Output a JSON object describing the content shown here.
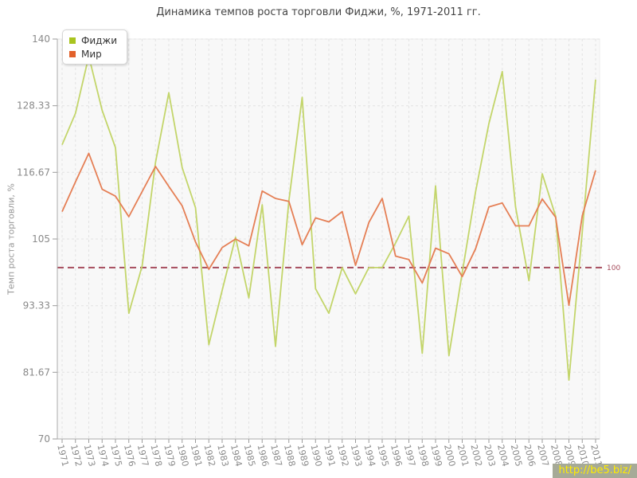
{
  "title": "Динамика темпов роста торговли Фиджи, %, 1971-2011 гг.",
  "y_axis": {
    "title": "Темп роста торговли, %",
    "tick_labels": [
      "140",
      "128.33",
      "116.67",
      "105",
      "93.33",
      "81.67",
      "70"
    ],
    "tick_values": [
      140,
      128.33,
      116.67,
      105,
      93.33,
      81.67,
      70
    ]
  },
  "legend": {
    "items": [
      {
        "key": "fiji",
        "label": "Фиджи",
        "color": "#a9c41f"
      },
      {
        "key": "world",
        "label": "Мир",
        "color": "#e2612b"
      }
    ]
  },
  "watermark": {
    "text": "http://be5.biz/"
  },
  "chart_data": {
    "type": "line",
    "title": "Динамика темпов роста торговли Фиджи, %, 1971-2011 гг.",
    "xlabel": "",
    "ylabel": "Темп роста торговли, %",
    "ylim": [
      70,
      140
    ],
    "grid": true,
    "legend_position": "top-left",
    "x": [
      1971,
      1972,
      1973,
      1974,
      1975,
      1976,
      1977,
      1978,
      1979,
      1980,
      1981,
      1982,
      1983,
      1984,
      1985,
      1986,
      1987,
      1988,
      1989,
      1990,
      1991,
      1992,
      1993,
      1994,
      1995,
      1996,
      1997,
      1998,
      1999,
      2000,
      2001,
      2002,
      2003,
      2004,
      2005,
      2006,
      2007,
      2008,
      2009,
      2010,
      2011
    ],
    "series": [
      {
        "key": "fiji",
        "name": "Фиджи",
        "color": "#c3d56a",
        "values": [
          121.5,
          127,
          137,
          127.5,
          121,
          92,
          100.3,
          118.4,
          130.6,
          117.5,
          110.5,
          86.5,
          96,
          105.3,
          94.7,
          111,
          86.2,
          111.7,
          129.8,
          96.3,
          92,
          100,
          95.4,
          100,
          100,
          104.3,
          109,
          85,
          114.3,
          84.6,
          99.1,
          113.3,
          125.2,
          134.3,
          110.6,
          97.7,
          116.4,
          109,
          80.3,
          106.3,
          132.9
        ]
      },
      {
        "key": "world",
        "name": "Мир",
        "color": "#e57f55",
        "values": [
          109.8,
          115,
          120,
          113.7,
          112.5,
          108.9,
          113.3,
          117.7,
          114.2,
          110.8,
          104.5,
          99.7,
          103.5,
          105,
          103.8,
          113.4,
          112.1,
          111.6,
          104,
          108.7,
          108,
          109.8,
          100.4,
          107.9,
          112.1,
          102,
          101.4,
          97.3,
          103.4,
          102.4,
          98.4,
          103.3,
          110.6,
          111.3,
          107.3,
          107.3,
          112,
          108.8,
          93.4,
          109.1,
          117
        ]
      }
    ],
    "reference_line": {
      "value": 100,
      "label": "100",
      "color": "#a64d5d"
    }
  },
  "colors": {
    "plot_bg": "#f8f8f8",
    "plot_border": "#ececec",
    "gridline": "#e2e2e2",
    "axis": "#ababab",
    "tick": "#9a9a9a",
    "tick_text": "#8a8a8a"
  }
}
